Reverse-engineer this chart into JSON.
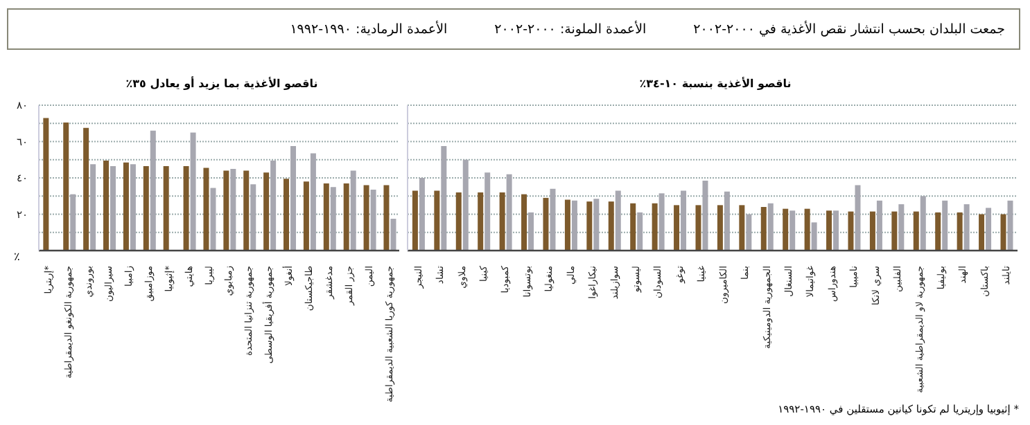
{
  "chart_data": [
    {
      "type": "bar",
      "title": "ناقصو الأغذية بما يزيد أو يعادل ٣٥٪",
      "ylabel": "٪",
      "annotations": [
        "جمعت البلدان بحسب انتشار نقص الأغذية في ٢٠٠٠-٢٠٠٢",
        "الأعمدة الملونة: ٢٠٠٠-٢٠٠٢",
        "الأعمدة الرمادية: ١٩٩٠-١٩٩٢"
      ],
      "categories": [
        "إريتريا*",
        "جمهورية الكونغو الديمقراطية",
        "بوروندي",
        "سيراليون",
        "زامبيا",
        "موزامبيق",
        "إثيوبيا*",
        "هايتي",
        "ليبريا",
        "زمبابوي",
        "جمهورية تنزانيا المتحدة",
        "جمهورية أفريقيا الوسطى",
        "أنغولا",
        "طاجيكستان",
        "مدغشقر",
        "جزر القمر",
        "اليمن",
        "جمهورية كوريا الشعبية الديمقراطية"
      ],
      "series": [
        {
          "color": "#7d5a2c",
          "values": [
            73,
            70.5,
            67.5,
            49.5,
            48.5,
            46.5,
            46.5,
            46.5,
            45.5,
            44,
            44,
            43,
            39.5,
            38,
            37,
            37,
            36,
            36
          ]
        },
        {
          "color": "#a7a7b0",
          "values": [
            null,
            31,
            47.5,
            46.5,
            47.5,
            66,
            null,
            65,
            34.5,
            45,
            36.5,
            49.5,
            57.5,
            53.5,
            35,
            44,
            33.5,
            17.5
          ]
        }
      ],
      "ylim": [
        0,
        80
      ],
      "yticks": [
        {
          "value": 10,
          "label": null
        },
        {
          "value": 20,
          "label": "٢٠"
        },
        {
          "value": 30,
          "label": null
        },
        {
          "value": 40,
          "label": "٤٠"
        },
        {
          "value": 50,
          "label": null
        },
        {
          "value": 60,
          "label": "٦٠"
        },
        {
          "value": 70,
          "label": null
        },
        {
          "value": 80,
          "label": "٨٠"
        }
      ],
      "grid": "y",
      "legend": false
    },
    {
      "type": "bar",
      "title": "ناقصو الأغذية بنسبة ١٠-٣٤٪",
      "annotations": [
        "* إثيوبيا وإريتريا لم تكونا كيانين مستقلين في ١٩٩٠-١٩٩٢"
      ],
      "categories": [
        "النيجر",
        "تشاد",
        "ملاوي",
        "كينيا",
        "كمبوديا",
        "بوتسوانا",
        "منغوليا",
        "مالي",
        "نيكاراغوا",
        "سوازيلند",
        "ليسوتو",
        "السودان",
        "توغو",
        "غينيا",
        "الكاميرون",
        "بنما",
        "الجمهورية الدومينيكية",
        "السنغال",
        "غواتيمالا",
        "هندوراس",
        "ناميبيا",
        "سري لانكا",
        "الفلبين",
        "جمهورية لاو الديمقراطية الشعبية",
        "بوليفيا",
        "الهند",
        "باكستان",
        "تايلند"
      ],
      "series": [
        {
          "color": "#7d5a2c",
          "values": [
            33,
            33,
            32,
            32,
            32,
            31,
            29,
            28,
            27,
            27,
            26,
            26,
            25,
            25,
            25,
            25,
            24,
            23,
            23,
            22,
            21.5,
            21.5,
            21.5,
            21.5,
            21,
            21,
            20,
            20
          ]
        },
        {
          "color": "#a7a7b0",
          "values": [
            40,
            57.5,
            50,
            43,
            42,
            21,
            34,
            27.5,
            28.5,
            33,
            21,
            31.5,
            33,
            38.5,
            32.5,
            20,
            26,
            22,
            15.5,
            22,
            36,
            27.5,
            25.5,
            30,
            27.5,
            25.5,
            23.5,
            27.5
          ]
        }
      ],
      "ylim": [
        0,
        80
      ],
      "yticks": [
        10,
        20,
        30,
        40,
        50,
        60,
        70,
        80
      ],
      "tick_labels": "x",
      "grid": "y",
      "legend": false
    }
  ]
}
